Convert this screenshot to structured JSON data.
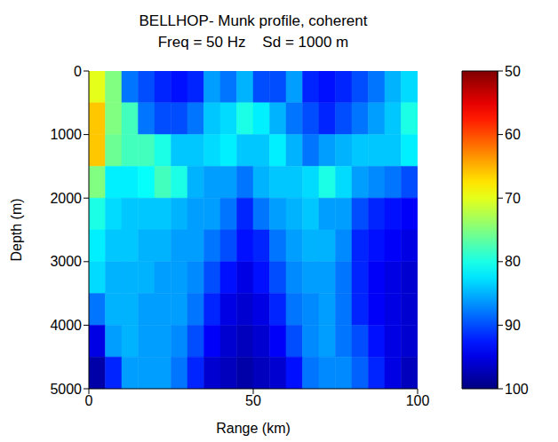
{
  "chart_data": {
    "type": "heatmap",
    "title": "BELLHOP- Munk profile, coherent",
    "subtitle": "Freq = 50 Hz    Sd = 1000 m",
    "x_label": "Range (km)",
    "y_label": "Depth (m)",
    "xlim": [
      0,
      100
    ],
    "xticks": [
      0,
      50,
      100
    ],
    "ylim": [
      5000,
      0
    ],
    "yticks": [
      0,
      1000,
      2000,
      3000,
      4000,
      5000
    ],
    "cells": {
      "x_edges": [
        0,
        5,
        10,
        15,
        20,
        25,
        30,
        35,
        40,
        45,
        50,
        55,
        60,
        65,
        70,
        75,
        80,
        85,
        90,
        95,
        100
      ],
      "y_edges": [
        0,
        500,
        1000,
        1500,
        2000,
        2500,
        3000,
        3500,
        4000,
        4500,
        5000
      ],
      "values": [
        [
          70,
          75,
          88,
          90,
          92,
          93,
          92,
          86,
          88,
          85,
          90,
          90,
          86,
          92,
          93,
          92,
          90,
          88,
          85,
          83
        ],
        [
          66,
          75,
          78,
          88,
          90,
          90,
          88,
          84,
          83,
          80,
          82,
          85,
          88,
          90,
          92,
          90,
          88,
          86,
          84,
          80
        ],
        [
          66,
          76,
          78,
          78,
          80,
          84,
          84,
          83,
          82,
          84,
          84,
          82,
          85,
          88,
          86,
          85,
          84,
          84,
          84,
          82
        ],
        [
          75,
          82,
          82,
          81,
          78,
          80,
          85,
          86,
          86,
          88,
          85,
          84,
          84,
          83,
          80,
          83,
          86,
          87,
          88,
          90
        ],
        [
          80,
          83,
          84,
          84,
          84,
          85,
          86,
          86,
          88,
          92,
          88,
          86,
          85,
          84,
          86,
          86,
          90,
          92,
          93,
          94
        ],
        [
          82,
          84,
          84,
          85,
          85,
          86,
          86,
          88,
          90,
          93,
          92,
          88,
          86,
          85,
          85,
          87,
          92,
          93,
          94,
          95
        ],
        [
          83,
          85,
          85,
          85,
          86,
          86,
          87,
          90,
          93,
          95,
          93,
          90,
          87,
          86,
          86,
          88,
          92,
          94,
          95,
          96
        ],
        [
          88,
          85,
          85,
          86,
          86,
          86,
          88,
          92,
          95,
          96,
          95,
          92,
          88,
          87,
          86,
          88,
          92,
          94,
          95,
          96
        ],
        [
          95,
          86,
          85,
          86,
          86,
          87,
          90,
          94,
          96,
          97,
          96,
          94,
          90,
          87,
          86,
          88,
          90,
          93,
          95,
          96
        ],
        [
          98,
          92,
          86,
          86,
          86,
          88,
          92,
          96,
          97,
          98,
          97,
          96,
          93,
          88,
          87,
          87,
          89,
          92,
          95,
          97
        ]
      ]
    },
    "colorbar": {
      "range": [
        100,
        50
      ],
      "ticks": [
        50,
        60,
        70,
        80,
        90,
        100
      ]
    }
  }
}
